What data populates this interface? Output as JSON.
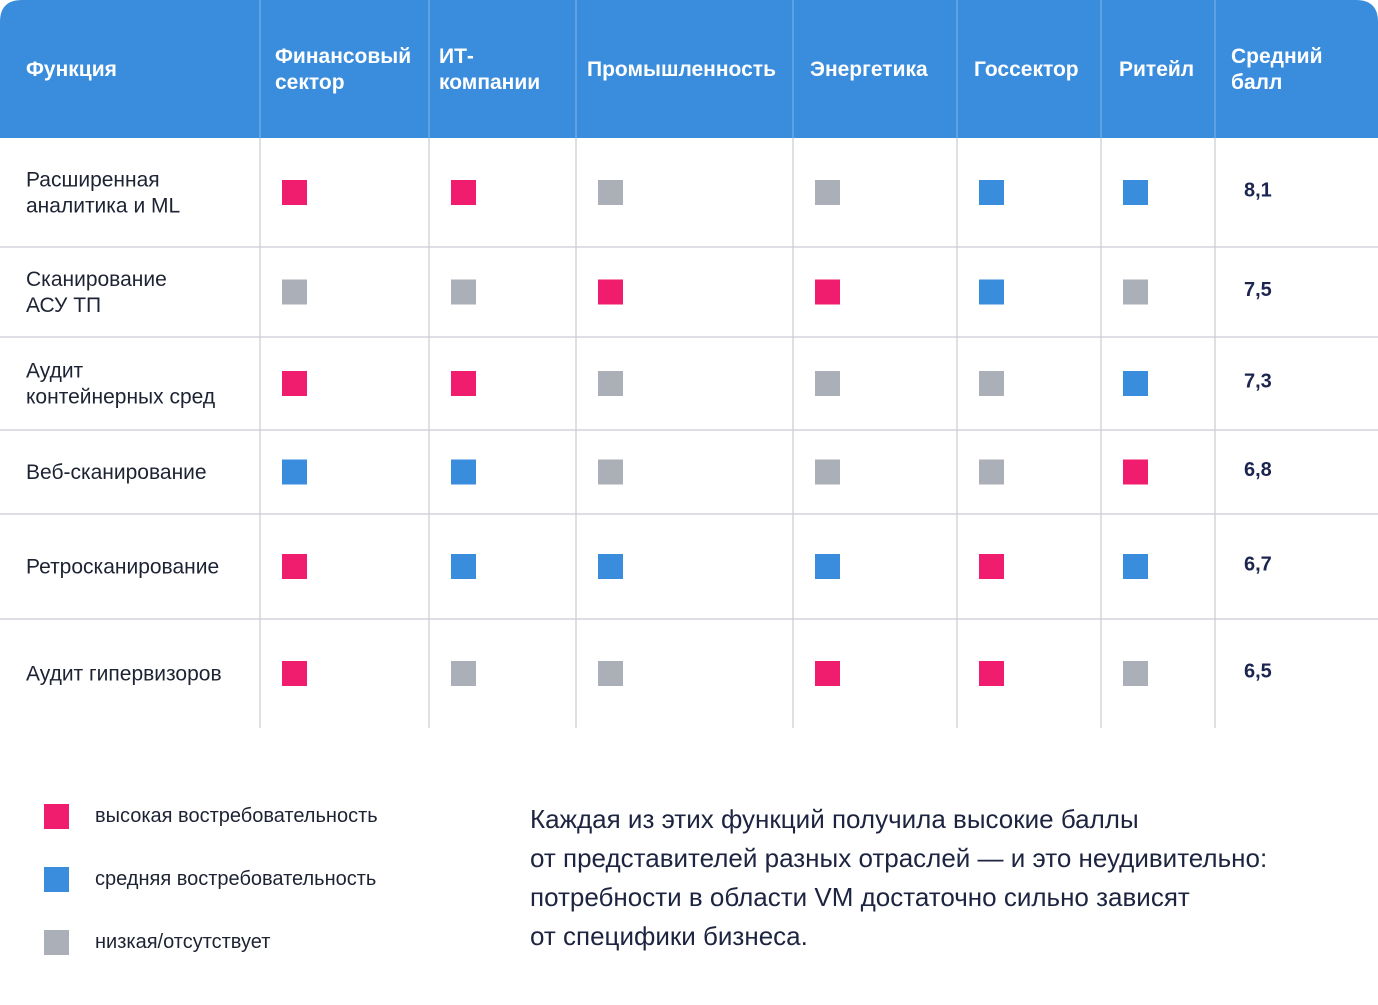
{
  "chart_data": {
    "type": "table",
    "columns": [
      [
        "Функция"
      ],
      [
        "Финансовый",
        "сектор"
      ],
      [
        "ИТ-",
        "компании"
      ],
      [
        "Промышленность"
      ],
      [
        "Энергетика"
      ],
      [
        "Госсектор"
      ],
      [
        "Ритейл"
      ],
      [
        "Средний",
        "балл"
      ]
    ],
    "rows": [
      {
        "label": [
          "Расширенная",
          "аналитика и ML"
        ],
        "levels": [
          "high",
          "high",
          "low",
          "low",
          "medium",
          "medium"
        ],
        "average": "8,1"
      },
      {
        "label": [
          "Сканирование",
          "АСУ ТП"
        ],
        "levels": [
          "low",
          "low",
          "high",
          "high",
          "medium",
          "low"
        ],
        "average": "7,5"
      },
      {
        "label": [
          "Аудит",
          "контейнерных сред"
        ],
        "levels": [
          "high",
          "high",
          "low",
          "low",
          "low",
          "medium"
        ],
        "average": "7,3"
      },
      {
        "label": [
          "Веб-сканирование"
        ],
        "levels": [
          "medium",
          "medium",
          "low",
          "low",
          "low",
          "high"
        ],
        "average": "6,8"
      },
      {
        "label": [
          "Ретросканирование"
        ],
        "levels": [
          "high",
          "medium",
          "medium",
          "medium",
          "high",
          "medium"
        ],
        "average": "6,7"
      },
      {
        "label": [
          "Аудит гипервизоров"
        ],
        "levels": [
          "high",
          "low",
          "low",
          "high",
          "high",
          "low"
        ],
        "average": "6,5"
      }
    ],
    "legend": [
      {
        "level": "high",
        "label": "высокая востребовательность"
      },
      {
        "level": "medium",
        "label": "средняя востребовательность"
      },
      {
        "level": "low",
        "label": "низкая/отсутствует"
      }
    ]
  },
  "colors": {
    "header_bg": "#3a8ddc",
    "high": "#f01c6e",
    "medium": "#3a8ddc",
    "low": "#abafb8",
    "grid": "#c9ccd3"
  },
  "note": {
    "lines": [
      "Каждая из этих функций получила высокие баллы",
      "от представителей разных отраслей — и это неудивительно:",
      "потребности в области VM достаточно сильно зависят",
      "от специфики бизнеса."
    ]
  }
}
